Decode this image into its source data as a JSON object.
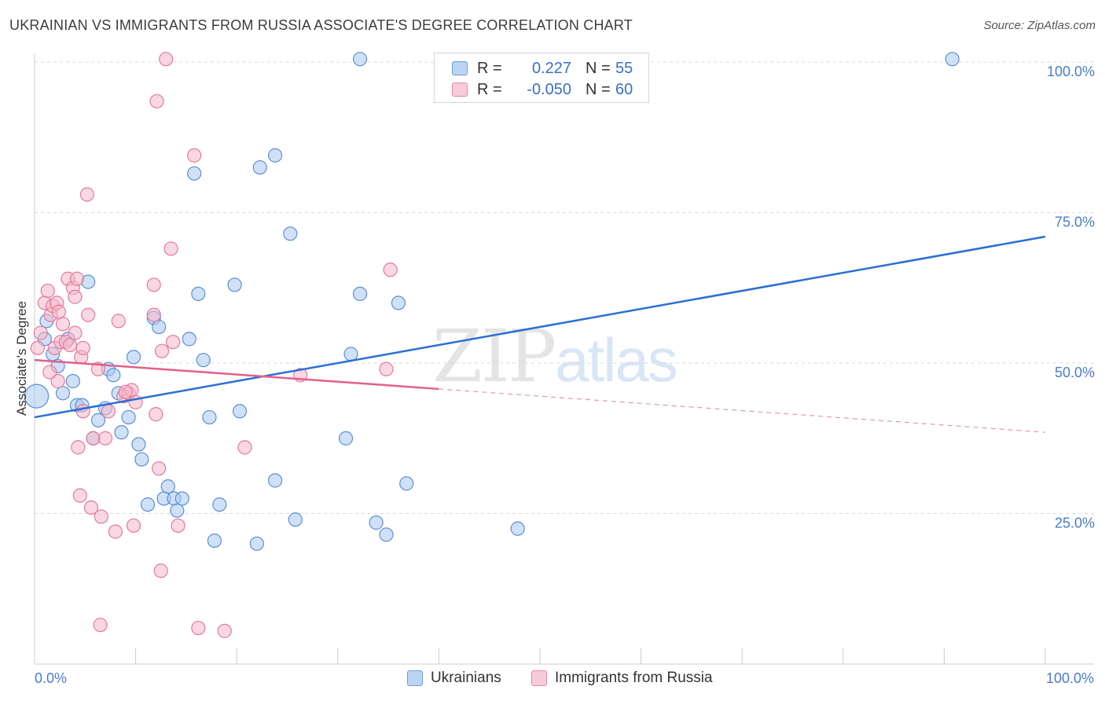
{
  "title": "UKRAINIAN VS IMMIGRANTS FROM RUSSIA ASSOCIATE'S DEGREE CORRELATION CHART",
  "source": "Source: ZipAtlas.com",
  "watermark": {
    "zip": "ZIP",
    "atlas": "atlas"
  },
  "legend": {
    "series1": {
      "r_label": "R =",
      "r_value": "0.227",
      "n_label": "N =",
      "n_value": "55"
    },
    "series2": {
      "r_label": "R =",
      "r_value": "-0.050",
      "n_label": "N =",
      "n_value": "60"
    }
  },
  "bottom_legend": {
    "series1": "Ukrainians",
    "series2": "Immigrants from Russia"
  },
  "colors": {
    "blue_fill": "#a9c8f0",
    "blue_stroke": "#5b8fd6",
    "blue_line": "#2a6fd1",
    "pink_fill": "#f5b8cb",
    "pink_stroke": "#e27a9c",
    "pink_line": "#e0608b",
    "grid": "#d9d9d9",
    "tick": "#4a7cc7"
  },
  "chart_data": {
    "type": "scatter",
    "title": "UKRAINIAN VS IMMIGRANTS FROM RUSSIA ASSOCIATE'S DEGREE CORRELATION CHART",
    "xlabel": "",
    "ylabel": "Associate's Degree",
    "xlim": [
      0,
      100
    ],
    "ylim": [
      0,
      103
    ],
    "x_tick_labels": [
      "0.0%",
      "100.0%"
    ],
    "y_tick_labels": [
      "25.0%",
      "50.0%",
      "75.0%",
      "100.0%"
    ],
    "y_ticks": [
      25,
      50,
      75,
      100
    ],
    "series": [
      {
        "name": "Ukrainians",
        "r": 0.227,
        "n": 55,
        "trend": {
          "x": [
            0,
            100
          ],
          "y": [
            41.0,
            71.0
          ],
          "dashed_from": null
        },
        "points": [
          [
            0.2,
            44.5
          ],
          [
            1.0,
            54
          ],
          [
            1.2,
            57
          ],
          [
            1.8,
            51.5
          ],
          [
            2.3,
            49.5
          ],
          [
            2.8,
            45
          ],
          [
            3.3,
            54
          ],
          [
            3.8,
            47
          ],
          [
            4.2,
            43
          ],
          [
            4.7,
            43
          ],
          [
            5.3,
            63.5
          ],
          [
            5.8,
            37.5
          ],
          [
            6.3,
            40.5
          ],
          [
            7.0,
            42.5
          ],
          [
            7.3,
            49
          ],
          [
            7.8,
            48
          ],
          [
            8.3,
            45
          ],
          [
            8.6,
            38.5
          ],
          [
            9.3,
            41
          ],
          [
            9.8,
            51
          ],
          [
            10.3,
            36.5
          ],
          [
            10.6,
            34
          ],
          [
            11.2,
            26.5
          ],
          [
            11.8,
            57.5
          ],
          [
            12.3,
            56
          ],
          [
            12.8,
            27.5
          ],
          [
            13.2,
            29.5
          ],
          [
            13.8,
            27.5
          ],
          [
            14.1,
            25.5
          ],
          [
            14.6,
            27.5
          ],
          [
            15.3,
            54
          ],
          [
            15.8,
            81.5
          ],
          [
            16.2,
            61.5
          ],
          [
            16.7,
            50.5
          ],
          [
            17.3,
            41
          ],
          [
            17.8,
            20.5
          ],
          [
            18.3,
            26.5
          ],
          [
            19.8,
            63
          ],
          [
            20.3,
            42
          ],
          [
            22.0,
            20
          ],
          [
            22.3,
            82.5
          ],
          [
            23.8,
            84.5
          ],
          [
            23.8,
            30.5
          ],
          [
            25.3,
            71.5
          ],
          [
            25.8,
            24
          ],
          [
            30.8,
            37.5
          ],
          [
            31.3,
            51.5
          ],
          [
            32.2,
            100.5
          ],
          [
            32.2,
            61.5
          ],
          [
            33.8,
            23.5
          ],
          [
            34.8,
            21.5
          ],
          [
            36.0,
            60
          ],
          [
            36.8,
            30
          ],
          [
            47.8,
            22.5
          ],
          [
            90.8,
            100.5
          ]
        ]
      },
      {
        "name": "Immigrants from Russia",
        "r": -0.05,
        "n": 60,
        "trend": {
          "x": [
            0,
            100
          ],
          "y": [
            50.5,
            38.5
          ],
          "dashed_from": 40.0
        },
        "points": [
          [
            0.3,
            52.5
          ],
          [
            0.6,
            55
          ],
          [
            1.0,
            60
          ],
          [
            1.3,
            62
          ],
          [
            1.6,
            58
          ],
          [
            1.8,
            59.5
          ],
          [
            2.0,
            52.5
          ],
          [
            2.2,
            60
          ],
          [
            2.3,
            47
          ],
          [
            2.6,
            53.5
          ],
          [
            2.8,
            56.5
          ],
          [
            3.1,
            53.5
          ],
          [
            3.3,
            64
          ],
          [
            3.5,
            53
          ],
          [
            3.8,
            62.5
          ],
          [
            4.0,
            61
          ],
          [
            4.2,
            64
          ],
          [
            4.0,
            55
          ],
          [
            4.3,
            36
          ],
          [
            4.5,
            28
          ],
          [
            4.6,
            51
          ],
          [
            4.8,
            52.5
          ],
          [
            4.8,
            42
          ],
          [
            5.2,
            78
          ],
          [
            5.3,
            58
          ],
          [
            5.6,
            26
          ],
          [
            5.8,
            37.5
          ],
          [
            6.3,
            49
          ],
          [
            6.6,
            24.5
          ],
          [
            7.0,
            37.5
          ],
          [
            7.3,
            42
          ],
          [
            8.0,
            22
          ],
          [
            8.3,
            57
          ],
          [
            8.8,
            44.5
          ],
          [
            9.3,
            45
          ],
          [
            9.6,
            45.5
          ],
          [
            9.8,
            23
          ],
          [
            10.0,
            43.5
          ],
          [
            11.8,
            58
          ],
          [
            11.8,
            63
          ],
          [
            12.1,
            93.5
          ],
          [
            12.3,
            32.5
          ],
          [
            12.5,
            15.5
          ],
          [
            12.6,
            52
          ],
          [
            13.0,
            100.5
          ],
          [
            13.5,
            69
          ],
          [
            13.7,
            53.5
          ],
          [
            14.2,
            23
          ],
          [
            15.8,
            84.5
          ],
          [
            16.2,
            6
          ],
          [
            18.8,
            5.5
          ],
          [
            20.8,
            36
          ],
          [
            26.3,
            48
          ],
          [
            34.8,
            49
          ],
          [
            35.2,
            65.5
          ],
          [
            6.5,
            6.5
          ],
          [
            1.5,
            48.5
          ],
          [
            2.4,
            58.5
          ],
          [
            9.0,
            45.2
          ],
          [
            12.0,
            41.5
          ]
        ]
      }
    ]
  }
}
